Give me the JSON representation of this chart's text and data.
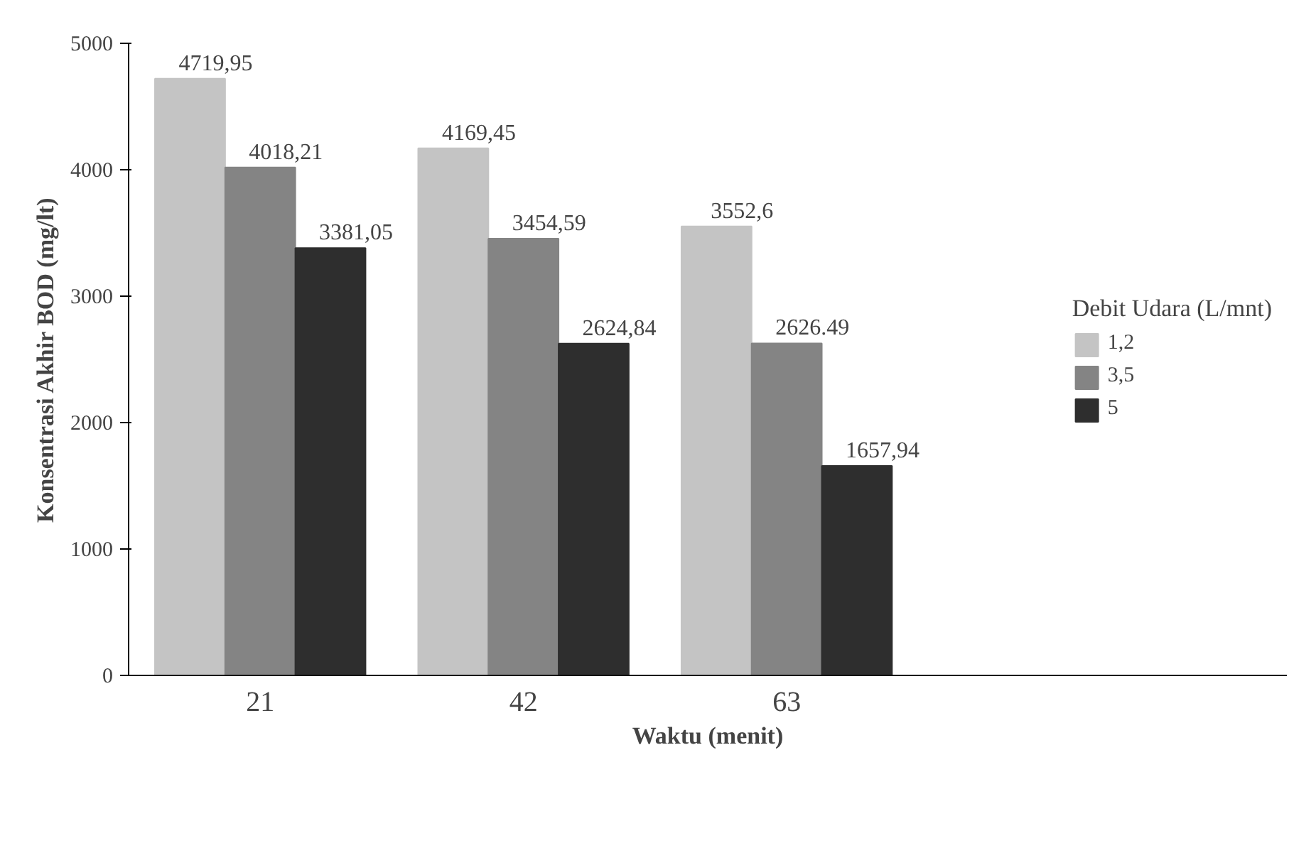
{
  "chart_data": {
    "type": "bar",
    "xlabel": "Waktu (menit)",
    "ylabel": "Konsentrasi Akhir BOD (mg/lt)",
    "legend_title": "Debit Udara (L/mnt)",
    "categories": [
      "21",
      "42",
      "63"
    ],
    "series": [
      {
        "name": "1,2",
        "color": "#c4c4c4",
        "values": [
          4719.95,
          4169.45,
          3552.6
        ],
        "value_labels": [
          "4719,95",
          "4169,45",
          "3552,6"
        ]
      },
      {
        "name": "3,5",
        "color": "#848484",
        "values": [
          4018.21,
          3454.59,
          2626.49
        ],
        "value_labels": [
          "4018,21",
          "3454,59",
          "2626.49"
        ]
      },
      {
        "name": "5",
        "color": "#2e2e2e",
        "values": [
          3381.05,
          2624.84,
          1657.94
        ],
        "value_labels": [
          "3381,05",
          "2624,84",
          "1657,94"
        ]
      }
    ],
    "ylim": [
      0,
      5000
    ],
    "yticks": [
      0,
      1000,
      2000,
      3000,
      4000,
      5000
    ],
    "grid": false,
    "legend": "right"
  }
}
